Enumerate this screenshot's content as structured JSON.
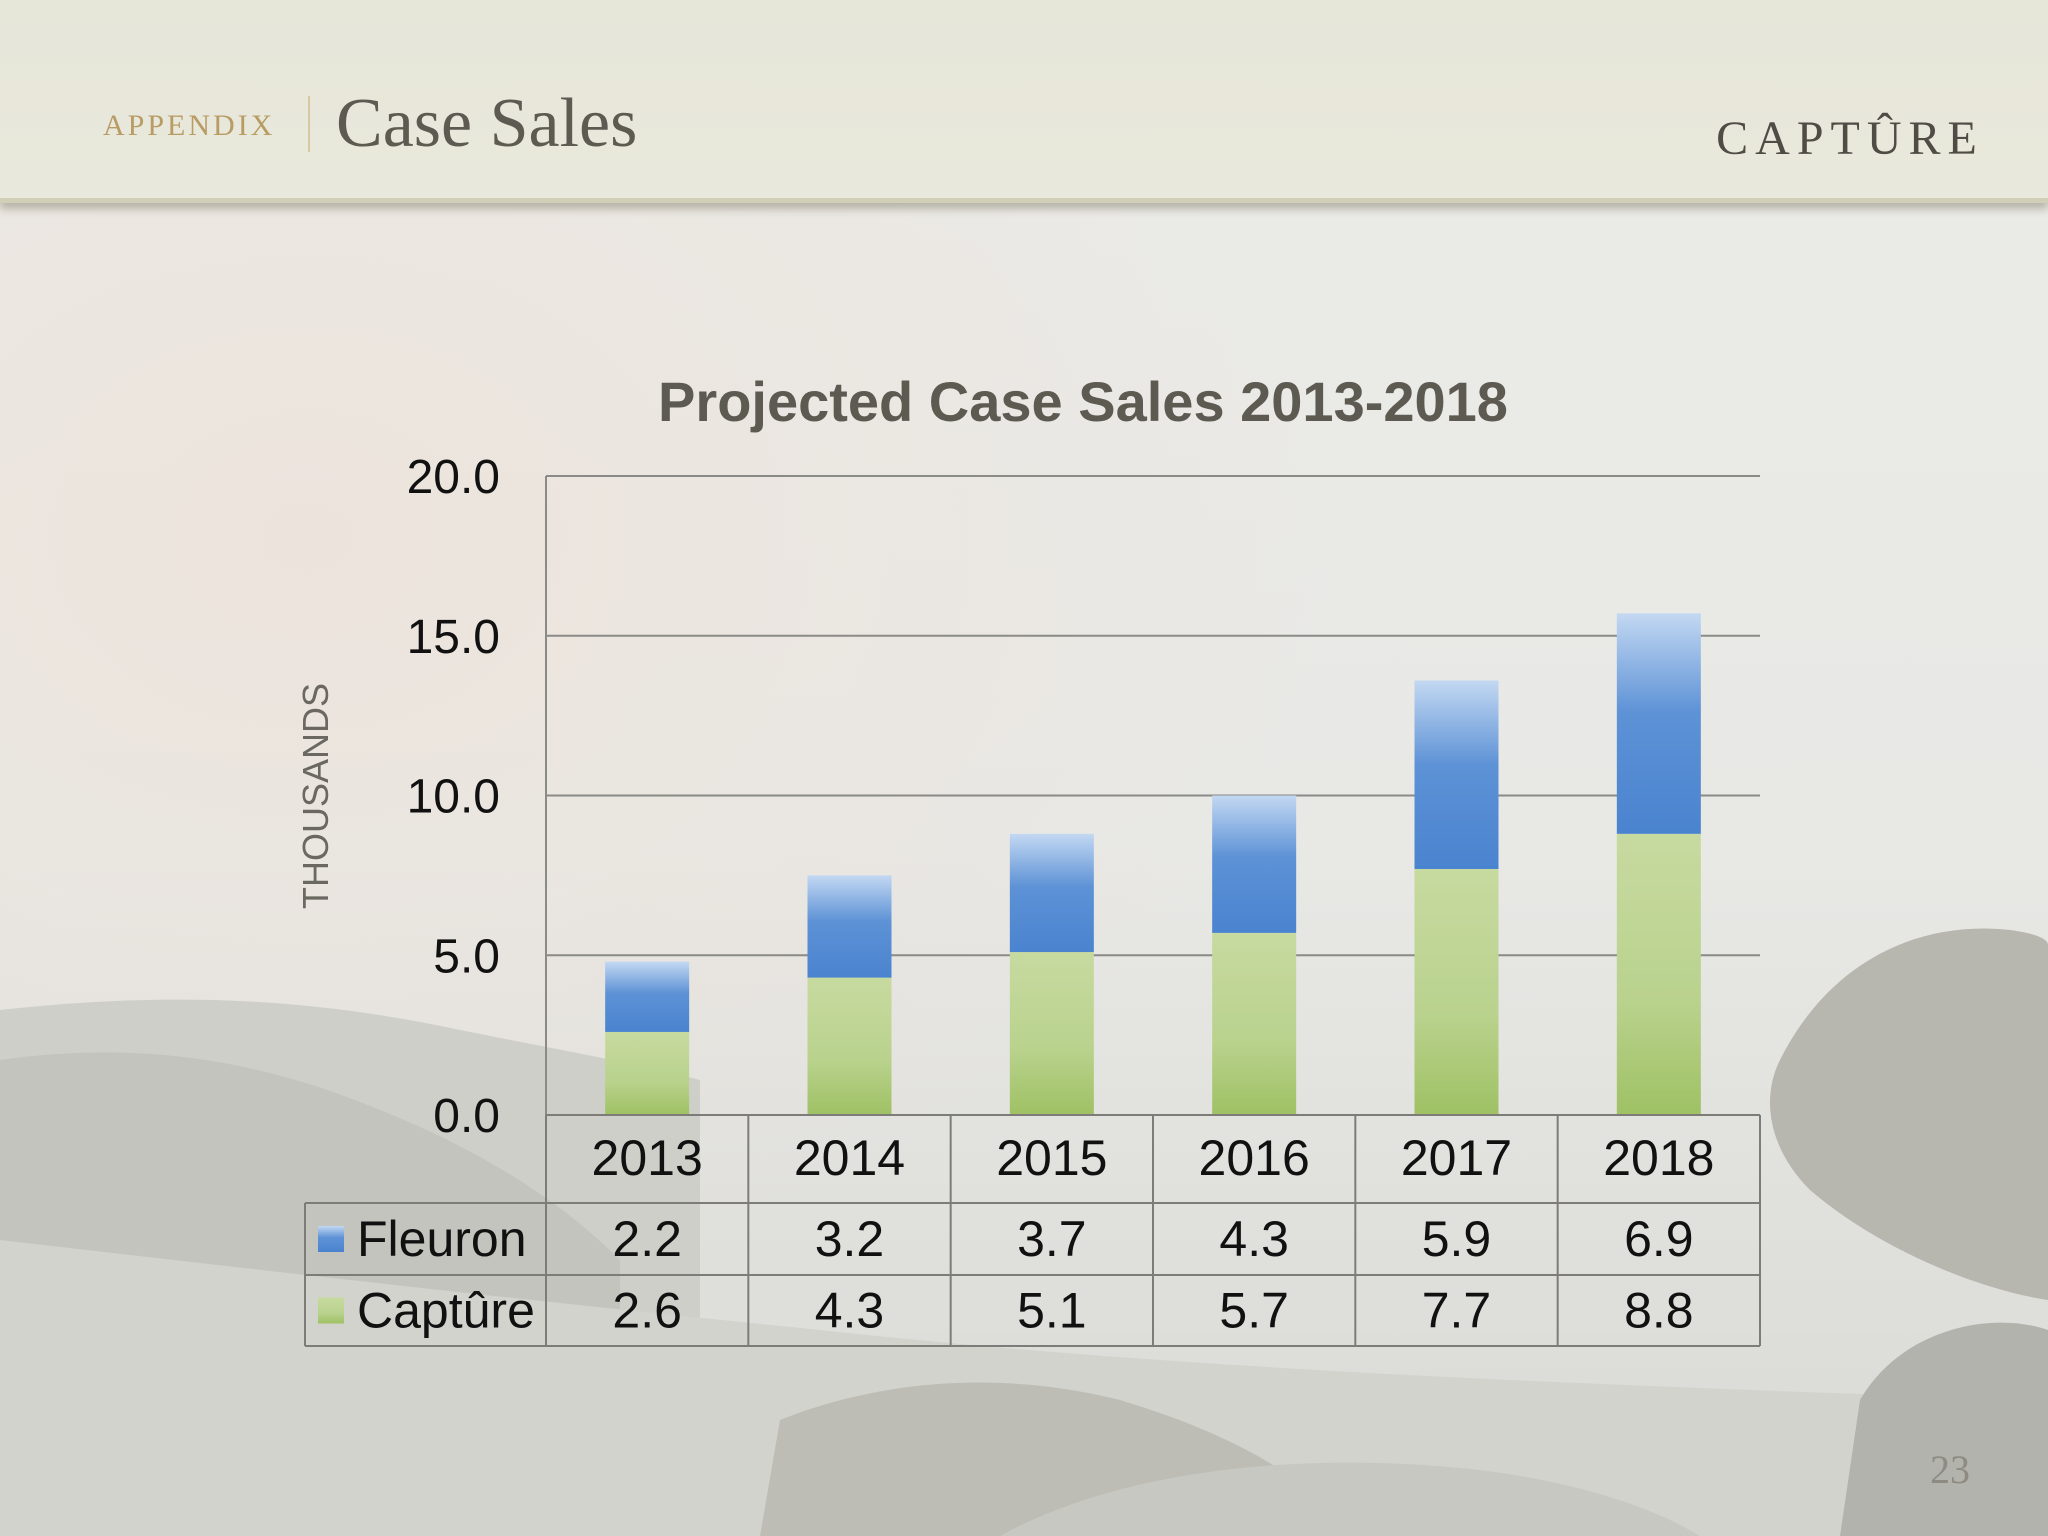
{
  "header": {
    "section": "APPENDIX",
    "title": "Case Sales",
    "brand": "CAPTÛRE"
  },
  "page_number": "23",
  "colors": {
    "fleuron": "#4f86d0",
    "capture": "#a7c774",
    "title_text": "#5d5a52",
    "accent": "#b89c63"
  },
  "chart_data": {
    "type": "bar",
    "stacked": true,
    "title": "Projected Case Sales 2013-2018",
    "xlabel": "",
    "ylabel": "THOUSANDS",
    "ylim": [
      0,
      20
    ],
    "yticks": [
      "0.0",
      "5.0",
      "10.0",
      "15.0",
      "20.0"
    ],
    "grid": true,
    "categories": [
      "2013",
      "2014",
      "2015",
      "2016",
      "2017",
      "2018"
    ],
    "series": [
      {
        "name": "Captûre",
        "values": [
          2.6,
          4.3,
          5.1,
          5.7,
          7.7,
          8.8
        ],
        "labels": [
          "2.6",
          "4.3",
          "5.1",
          "5.7",
          "7.7",
          "8.8"
        ],
        "color": "#a7c774"
      },
      {
        "name": "Fleuron",
        "values": [
          2.2,
          3.2,
          3.7,
          4.3,
          5.9,
          6.9
        ],
        "labels": [
          "2.2",
          "3.2",
          "3.7",
          "4.3",
          "5.9",
          "6.9"
        ],
        "color": "#4f86d0"
      }
    ],
    "data_table": {
      "rows": [
        {
          "name": "Fleuron",
          "values": [
            "2.2",
            "3.2",
            "3.7",
            "4.3",
            "5.9",
            "6.9"
          ]
        },
        {
          "name": "Captûre",
          "values": [
            "2.6",
            "4.3",
            "5.1",
            "5.7",
            "7.7",
            "8.8"
          ]
        }
      ]
    }
  }
}
